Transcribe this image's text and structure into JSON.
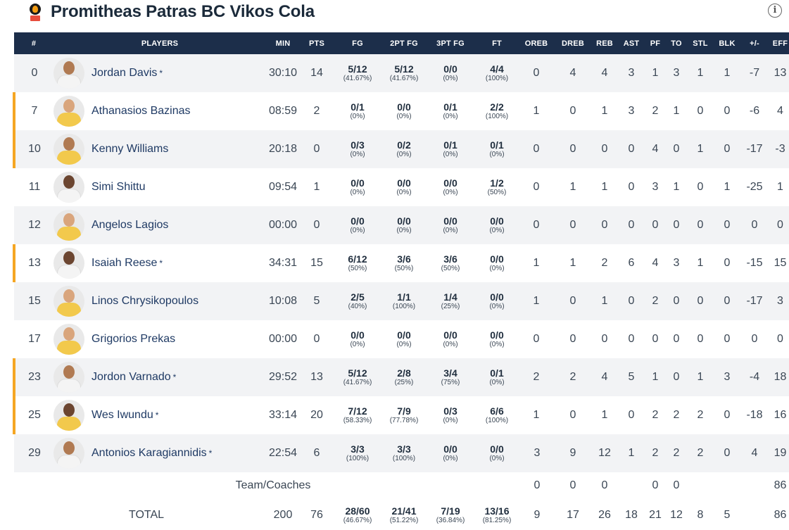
{
  "team": {
    "name": "Promitheas Patras BC Vikos Cola",
    "logo_icon": "team-logo-icon",
    "info_icon": "info-icon",
    "info_glyph": "i"
  },
  "colors": {
    "header_bg": "#1c2e4a",
    "starter_accent": "#f5a623",
    "player_name": "#1f3a64"
  },
  "columns": [
    "#",
    "PLAYERS",
    "MIN",
    "PTS",
    "FG",
    "2PT FG",
    "3PT FG",
    "FT",
    "OREB",
    "DREB",
    "REB",
    "AST",
    "PF",
    "TO",
    "STL",
    "BLK",
    "+/-",
    "EFF"
  ],
  "players": [
    {
      "no": "0",
      "name": "Jordan Davis",
      "star": "*",
      "marked": false,
      "skin": "",
      "kit": "white",
      "min": "30:10",
      "pts": "14",
      "fg": "5/12",
      "fg_pct": "(41.67%)",
      "fg2": "5/12",
      "fg2_pct": "(41.67%)",
      "fg3": "0/0",
      "fg3_pct": "(0%)",
      "ft": "4/4",
      "ft_pct": "(100%)",
      "oreb": "0",
      "dreb": "4",
      "reb": "4",
      "ast": "3",
      "pf": "1",
      "to": "3",
      "stl": "1",
      "blk": "1",
      "pm": "-7",
      "eff": "13"
    },
    {
      "no": "7",
      "name": "Athanasios Bazinas",
      "star": "",
      "marked": true,
      "skin": "light",
      "kit": "yellow",
      "min": "08:59",
      "pts": "2",
      "fg": "0/1",
      "fg_pct": "(0%)",
      "fg2": "0/0",
      "fg2_pct": "(0%)",
      "fg3": "0/1",
      "fg3_pct": "(0%)",
      "ft": "2/2",
      "ft_pct": "(100%)",
      "oreb": "1",
      "dreb": "0",
      "reb": "1",
      "ast": "3",
      "pf": "2",
      "to": "1",
      "stl": "0",
      "blk": "0",
      "pm": "-6",
      "eff": "4"
    },
    {
      "no": "10",
      "name": "Kenny Williams",
      "star": "",
      "marked": true,
      "skin": "",
      "kit": "yellow",
      "min": "20:18",
      "pts": "0",
      "fg": "0/3",
      "fg_pct": "(0%)",
      "fg2": "0/2",
      "fg2_pct": "(0%)",
      "fg3": "0/1",
      "fg3_pct": "(0%)",
      "ft": "0/1",
      "ft_pct": "(0%)",
      "oreb": "0",
      "dreb": "0",
      "reb": "0",
      "ast": "0",
      "pf": "4",
      "to": "0",
      "stl": "1",
      "blk": "0",
      "pm": "-17",
      "eff": "-3"
    },
    {
      "no": "11",
      "name": "Simi Shittu",
      "star": "",
      "marked": false,
      "skin": "dark",
      "kit": "white",
      "min": "09:54",
      "pts": "1",
      "fg": "0/0",
      "fg_pct": "(0%)",
      "fg2": "0/0",
      "fg2_pct": "(0%)",
      "fg3": "0/0",
      "fg3_pct": "(0%)",
      "ft": "1/2",
      "ft_pct": "(50%)",
      "oreb": "0",
      "dreb": "1",
      "reb": "1",
      "ast": "0",
      "pf": "3",
      "to": "1",
      "stl": "0",
      "blk": "1",
      "pm": "-25",
      "eff": "1"
    },
    {
      "no": "12",
      "name": "Angelos Lagios",
      "star": "",
      "marked": false,
      "skin": "light",
      "kit": "yellow",
      "min": "00:00",
      "pts": "0",
      "fg": "0/0",
      "fg_pct": "(0%)",
      "fg2": "0/0",
      "fg2_pct": "(0%)",
      "fg3": "0/0",
      "fg3_pct": "(0%)",
      "ft": "0/0",
      "ft_pct": "(0%)",
      "oreb": "0",
      "dreb": "0",
      "reb": "0",
      "ast": "0",
      "pf": "0",
      "to": "0",
      "stl": "0",
      "blk": "0",
      "pm": "0",
      "eff": "0"
    },
    {
      "no": "13",
      "name": "Isaiah Reese",
      "star": "*",
      "marked": true,
      "skin": "dark",
      "kit": "white",
      "min": "34:31",
      "pts": "15",
      "fg": "6/12",
      "fg_pct": "(50%)",
      "fg2": "3/6",
      "fg2_pct": "(50%)",
      "fg3": "3/6",
      "fg3_pct": "(50%)",
      "ft": "0/0",
      "ft_pct": "(0%)",
      "oreb": "1",
      "dreb": "1",
      "reb": "2",
      "ast": "6",
      "pf": "4",
      "to": "3",
      "stl": "1",
      "blk": "0",
      "pm": "-15",
      "eff": "15"
    },
    {
      "no": "15",
      "name": "Linos Chrysikopoulos",
      "star": "",
      "marked": false,
      "skin": "light",
      "kit": "yellow",
      "min": "10:08",
      "pts": "5",
      "fg": "2/5",
      "fg_pct": "(40%)",
      "fg2": "1/1",
      "fg2_pct": "(100%)",
      "fg3": "1/4",
      "fg3_pct": "(25%)",
      "ft": "0/0",
      "ft_pct": "(0%)",
      "oreb": "1",
      "dreb": "0",
      "reb": "1",
      "ast": "0",
      "pf": "2",
      "to": "0",
      "stl": "0",
      "blk": "0",
      "pm": "-17",
      "eff": "3"
    },
    {
      "no": "17",
      "name": "Grigorios Prekas",
      "star": "",
      "marked": false,
      "skin": "light",
      "kit": "yellow",
      "min": "00:00",
      "pts": "0",
      "fg": "0/0",
      "fg_pct": "(0%)",
      "fg2": "0/0",
      "fg2_pct": "(0%)",
      "fg3": "0/0",
      "fg3_pct": "(0%)",
      "ft": "0/0",
      "ft_pct": "(0%)",
      "oreb": "0",
      "dreb": "0",
      "reb": "0",
      "ast": "0",
      "pf": "0",
      "to": "0",
      "stl": "0",
      "blk": "0",
      "pm": "0",
      "eff": "0"
    },
    {
      "no": "23",
      "name": "Jordon Varnado",
      "star": "*",
      "marked": true,
      "skin": "",
      "kit": "white",
      "min": "29:52",
      "pts": "13",
      "fg": "5/12",
      "fg_pct": "(41.67%)",
      "fg2": "2/8",
      "fg2_pct": "(25%)",
      "fg3": "3/4",
      "fg3_pct": "(75%)",
      "ft": "0/1",
      "ft_pct": "(0%)",
      "oreb": "2",
      "dreb": "2",
      "reb": "4",
      "ast": "5",
      "pf": "1",
      "to": "0",
      "stl": "1",
      "blk": "3",
      "pm": "-4",
      "eff": "18"
    },
    {
      "no": "25",
      "name": "Wes Iwundu",
      "star": "*",
      "marked": true,
      "skin": "dark",
      "kit": "yellow",
      "min": "33:14",
      "pts": "20",
      "fg": "7/12",
      "fg_pct": "(58.33%)",
      "fg2": "7/9",
      "fg2_pct": "(77.78%)",
      "fg3": "0/3",
      "fg3_pct": "(0%)",
      "ft": "6/6",
      "ft_pct": "(100%)",
      "oreb": "1",
      "dreb": "0",
      "reb": "1",
      "ast": "0",
      "pf": "2",
      "to": "2",
      "stl": "2",
      "blk": "0",
      "pm": "-18",
      "eff": "16"
    },
    {
      "no": "29",
      "name": "Antonios Karagiannidis",
      "star": "*",
      "marked": false,
      "skin": "",
      "kit": "white",
      "min": "22:54",
      "pts": "6",
      "fg": "3/3",
      "fg_pct": "(100%)",
      "fg2": "3/3",
      "fg2_pct": "(100%)",
      "fg3": "0/0",
      "fg3_pct": "(0%)",
      "ft": "0/0",
      "ft_pct": "(0%)",
      "oreb": "3",
      "dreb": "9",
      "reb": "12",
      "ast": "1",
      "pf": "2",
      "to": "2",
      "stl": "2",
      "blk": "0",
      "pm": "4",
      "eff": "19"
    }
  ],
  "team_coaches": {
    "label": "Team/Coaches",
    "oreb": "0",
    "dreb": "0",
    "reb": "0",
    "pf": "0",
    "to": "0",
    "eff": "86"
  },
  "total": {
    "label": "TOTAL",
    "min": "200",
    "pts": "76",
    "fg": "28/60",
    "fg_pct": "(46.67%)",
    "fg2": "21/41",
    "fg2_pct": "(51.22%)",
    "fg3": "7/19",
    "fg3_pct": "(36.84%)",
    "ft": "13/16",
    "ft_pct": "(81.25%)",
    "oreb": "9",
    "dreb": "17",
    "reb": "26",
    "ast": "18",
    "pf": "21",
    "to": "12",
    "stl": "8",
    "blk": "5",
    "eff": "86"
  }
}
